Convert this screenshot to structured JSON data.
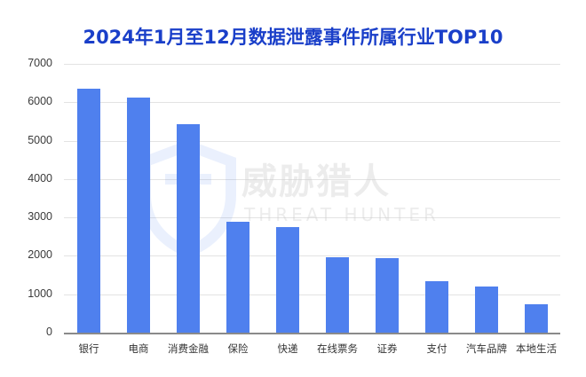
{
  "title": "2024年1月至12月数据泄露事件所属行业TOP10",
  "watermark": {
    "cn": "威胁猎人",
    "en": "THREAT HUNTER",
    "icon": "shield-icon"
  },
  "colors": {
    "bar": "#4f80ee",
    "title": "#1a3fc9",
    "grid": "#e3e3e3",
    "axis": "#8a8a8a"
  },
  "y_ticks": [
    "7000",
    "6000",
    "5000",
    "4000",
    "3000",
    "2000",
    "1000",
    "0"
  ],
  "chart_data": {
    "type": "bar",
    "title": "2024年1月至12月数据泄露事件所属行业TOP10",
    "xlabel": "",
    "ylabel": "",
    "ylim": [
      0,
      7000
    ],
    "yticks": [
      0,
      1000,
      2000,
      3000,
      4000,
      5000,
      6000,
      7000
    ],
    "grid": true,
    "legend": null,
    "categories": [
      "银行",
      "电商",
      "消费金融",
      "保险",
      "快递",
      "在线票务",
      "证券",
      "支付",
      "汽车品牌",
      "本地生活"
    ],
    "values": [
      6350,
      6130,
      5440,
      2880,
      2750,
      1960,
      1950,
      1330,
      1210,
      750
    ]
  }
}
